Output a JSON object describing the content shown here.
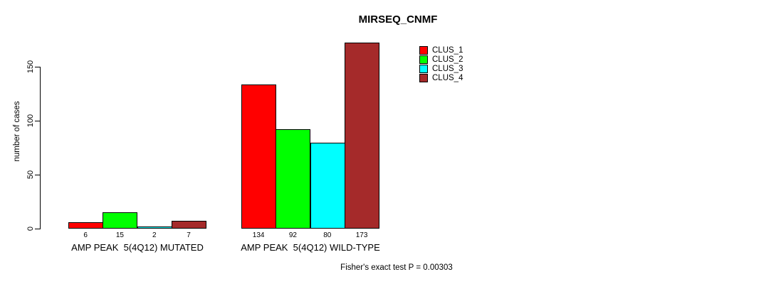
{
  "title": "MIRSEQ_CNMF",
  "y_axis": {
    "label": "number of cases",
    "ticks": [
      0,
      50,
      100,
      150
    ]
  },
  "legend": {
    "items": [
      {
        "label": "CLUS_1",
        "color": "#FF0000"
      },
      {
        "label": "CLUS_2",
        "color": "#00FF00"
      },
      {
        "label": "CLUS_3",
        "color": "#00FFFF"
      },
      {
        "label": "CLUS_4",
        "color": "#A52A2A"
      }
    ]
  },
  "groups": [
    {
      "label": "AMP PEAK  5(4Q12) MUTATED",
      "values": [
        6,
        15,
        2,
        7
      ]
    },
    {
      "label": "AMP PEAK  5(4Q12) WILD-TYPE",
      "values": [
        134,
        92,
        80,
        173
      ]
    }
  ],
  "footer": "Fisher's exact test P = 0.00303",
  "chart_data": {
    "type": "bar",
    "title": "MIRSEQ_CNMF",
    "categories": [
      "AMP PEAK 5(4Q12) MUTATED",
      "AMP PEAK 5(4Q12) WILD-TYPE"
    ],
    "series": [
      {
        "name": "CLUS_1",
        "color": "#FF0000",
        "values": [
          6,
          134
        ]
      },
      {
        "name": "CLUS_2",
        "color": "#00FF00",
        "values": [
          15,
          92
        ]
      },
      {
        "name": "CLUS_3",
        "color": "#00FFFF",
        "values": [
          2,
          80
        ]
      },
      {
        "name": "CLUS_4",
        "color": "#A52A2A",
        "values": [
          7,
          173
        ]
      }
    ],
    "xlabel": "",
    "ylabel": "number of cases",
    "ylim": [
      0,
      175
    ],
    "yticks": [
      0,
      50,
      100,
      150
    ],
    "grid": false,
    "legend_position": "top-right",
    "bar_value_labels": true,
    "annotation": "Fisher's exact test P = 0.00303"
  }
}
